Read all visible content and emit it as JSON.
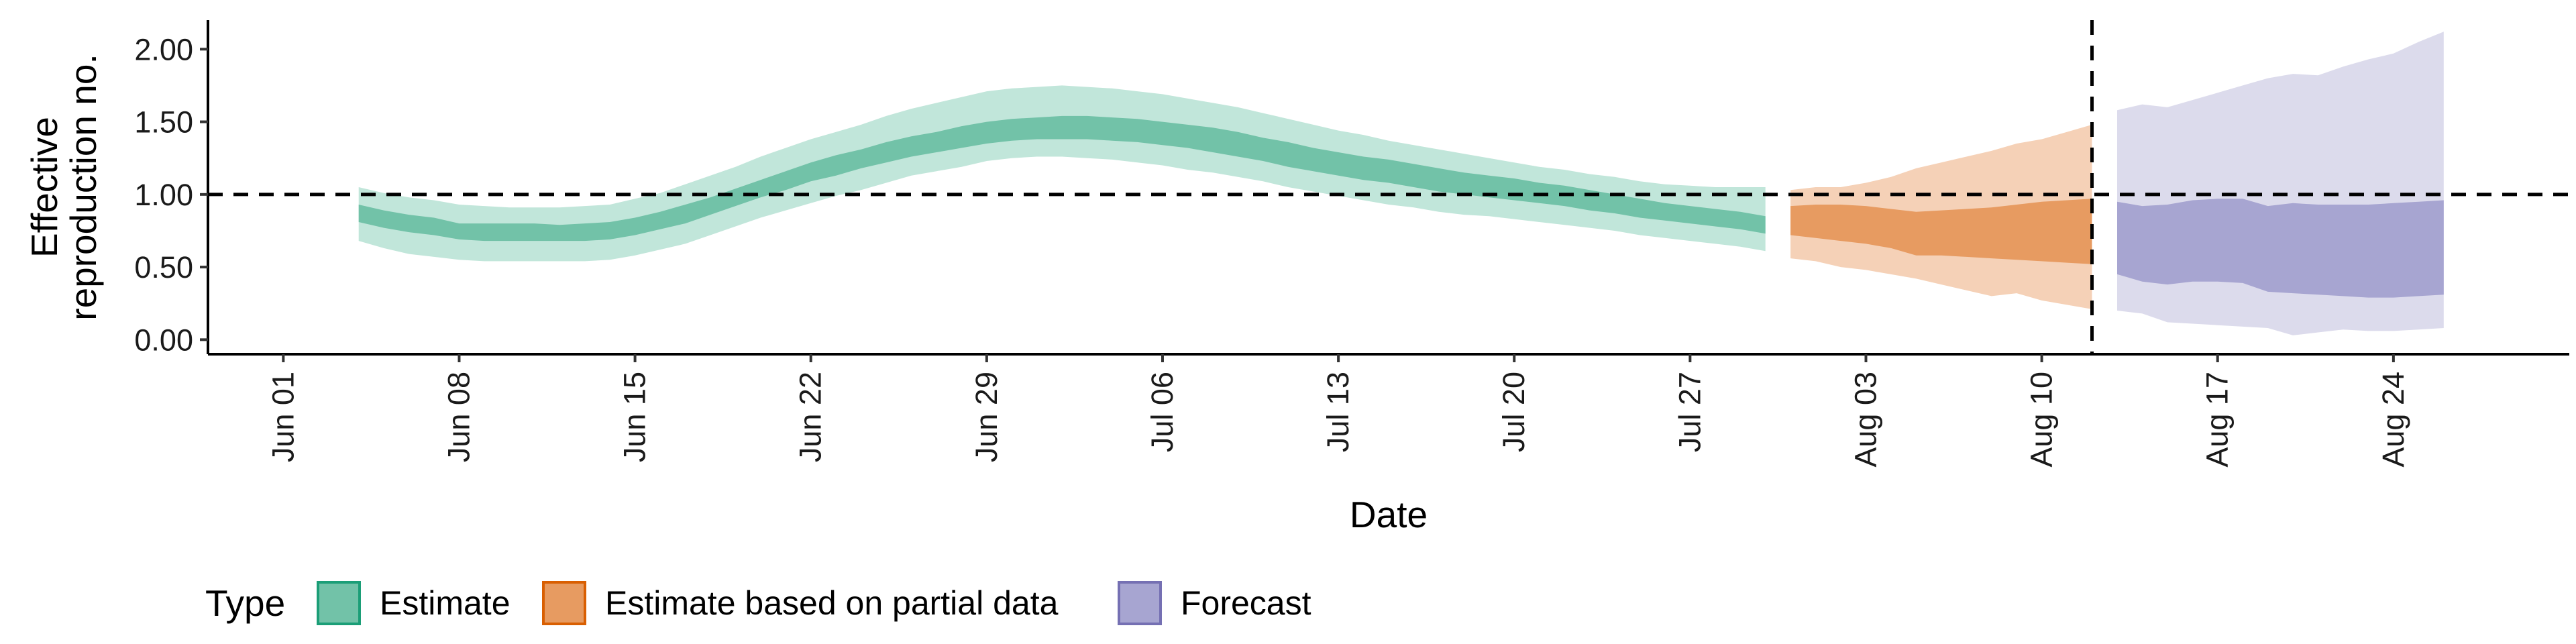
{
  "chart_data": {
    "type": "area",
    "xlabel": "Date",
    "ylabel_lines": [
      "Effective",
      "reproduction no."
    ],
    "xlim": [
      "2020-05-29",
      "2020-08-31"
    ],
    "ylim": [
      -0.1,
      2.2
    ],
    "x_ticks": [
      "2020-06-01",
      "2020-06-08",
      "2020-06-15",
      "2020-06-22",
      "2020-06-29",
      "2020-07-06",
      "2020-07-13",
      "2020-07-20",
      "2020-07-27",
      "2020-08-03",
      "2020-08-10",
      "2020-08-17",
      "2020-08-24"
    ],
    "x_tick_labels": [
      "Jun 01",
      "Jun 08",
      "Jun 15",
      "Jun 22",
      "Jun 29",
      "Jul 06",
      "Jul 13",
      "Jul 20",
      "Jul 27",
      "Aug 03",
      "Aug 10",
      "Aug 17",
      "Aug 24"
    ],
    "y_ticks": [
      0,
      0.5,
      1,
      1.5,
      2
    ],
    "y_tick_labels": [
      "0.00",
      "0.50",
      "1.00",
      "1.50",
      "2.00"
    ],
    "hline": 1.0,
    "vline": "2020-08-12",
    "legend": {
      "position": "bottom-left",
      "title": "Type",
      "entries": [
        "Estimate",
        "Estimate based on partial data",
        "Forecast"
      ]
    },
    "series": [
      {
        "name": "Estimate",
        "fill_light": "#c1e6da",
        "fill_dark": "#72c2a8",
        "stroke": "#1b9e77",
        "x": [
          "2020-06-04",
          "2020-06-05",
          "2020-06-06",
          "2020-06-07",
          "2020-06-08",
          "2020-06-09",
          "2020-06-10",
          "2020-06-11",
          "2020-06-12",
          "2020-06-13",
          "2020-06-14",
          "2020-06-15",
          "2020-06-16",
          "2020-06-17",
          "2020-06-18",
          "2020-06-19",
          "2020-06-20",
          "2020-06-21",
          "2020-06-22",
          "2020-06-23",
          "2020-06-24",
          "2020-06-25",
          "2020-06-26",
          "2020-06-27",
          "2020-06-28",
          "2020-06-29",
          "2020-06-30",
          "2020-07-01",
          "2020-07-02",
          "2020-07-03",
          "2020-07-04",
          "2020-07-05",
          "2020-07-06",
          "2020-07-07",
          "2020-07-08",
          "2020-07-09",
          "2020-07-10",
          "2020-07-11",
          "2020-07-12",
          "2020-07-13",
          "2020-07-14",
          "2020-07-15",
          "2020-07-16",
          "2020-07-17",
          "2020-07-18",
          "2020-07-19",
          "2020-07-20",
          "2020-07-21",
          "2020-07-22",
          "2020-07-23",
          "2020-07-24",
          "2020-07-25",
          "2020-07-26",
          "2020-07-27",
          "2020-07-28",
          "2020-07-29",
          "2020-07-30"
        ],
        "lower90": [
          0.68,
          0.63,
          0.59,
          0.57,
          0.55,
          0.54,
          0.54,
          0.54,
          0.54,
          0.54,
          0.55,
          0.58,
          0.62,
          0.66,
          0.72,
          0.78,
          0.84,
          0.89,
          0.94,
          0.99,
          1.03,
          1.08,
          1.13,
          1.16,
          1.19,
          1.23,
          1.25,
          1.26,
          1.26,
          1.25,
          1.24,
          1.22,
          1.2,
          1.17,
          1.15,
          1.12,
          1.09,
          1.05,
          1.02,
          0.99,
          0.96,
          0.93,
          0.91,
          0.88,
          0.86,
          0.85,
          0.83,
          0.81,
          0.79,
          0.77,
          0.75,
          0.72,
          0.7,
          0.68,
          0.66,
          0.64,
          0.61
        ],
        "lower50": [
          0.81,
          0.77,
          0.74,
          0.72,
          0.69,
          0.68,
          0.68,
          0.68,
          0.68,
          0.68,
          0.69,
          0.72,
          0.76,
          0.8,
          0.86,
          0.92,
          0.98,
          1.03,
          1.09,
          1.13,
          1.18,
          1.22,
          1.26,
          1.29,
          1.32,
          1.35,
          1.37,
          1.38,
          1.38,
          1.38,
          1.37,
          1.36,
          1.34,
          1.32,
          1.29,
          1.26,
          1.23,
          1.19,
          1.16,
          1.13,
          1.1,
          1.08,
          1.05,
          1.02,
          1.0,
          0.98,
          0.96,
          0.94,
          0.92,
          0.89,
          0.87,
          0.84,
          0.82,
          0.8,
          0.78,
          0.76,
          0.73
        ],
        "upper50": [
          0.93,
          0.89,
          0.86,
          0.84,
          0.8,
          0.8,
          0.8,
          0.8,
          0.79,
          0.8,
          0.81,
          0.84,
          0.88,
          0.93,
          0.98,
          1.04,
          1.1,
          1.16,
          1.22,
          1.27,
          1.31,
          1.36,
          1.4,
          1.43,
          1.47,
          1.5,
          1.52,
          1.53,
          1.54,
          1.54,
          1.53,
          1.52,
          1.5,
          1.48,
          1.46,
          1.43,
          1.39,
          1.36,
          1.32,
          1.29,
          1.26,
          1.24,
          1.21,
          1.18,
          1.15,
          1.13,
          1.11,
          1.08,
          1.06,
          1.03,
          1.0,
          0.97,
          0.94,
          0.92,
          0.9,
          0.88,
          0.85
        ],
        "upper90": [
          1.05,
          1.01,
          0.98,
          0.96,
          0.93,
          0.92,
          0.91,
          0.91,
          0.91,
          0.92,
          0.93,
          0.97,
          1.01,
          1.07,
          1.13,
          1.19,
          1.26,
          1.32,
          1.38,
          1.43,
          1.48,
          1.54,
          1.59,
          1.63,
          1.67,
          1.71,
          1.73,
          1.74,
          1.75,
          1.74,
          1.73,
          1.71,
          1.69,
          1.66,
          1.63,
          1.6,
          1.56,
          1.52,
          1.48,
          1.44,
          1.41,
          1.37,
          1.34,
          1.31,
          1.28,
          1.25,
          1.22,
          1.19,
          1.17,
          1.14,
          1.12,
          1.09,
          1.07,
          1.06,
          1.05,
          1.05,
          1.05
        ]
      },
      {
        "name": "Estimate based on partial data",
        "fill_light": "#f5d1b7",
        "fill_dark": "#e79b61",
        "stroke": "#d95f02",
        "x": [
          "2020-07-31",
          "2020-08-01",
          "2020-08-02",
          "2020-08-03",
          "2020-08-04",
          "2020-08-05",
          "2020-08-06",
          "2020-08-07",
          "2020-08-08",
          "2020-08-09",
          "2020-08-10",
          "2020-08-11",
          "2020-08-12"
        ],
        "lower90": [
          0.56,
          0.54,
          0.5,
          0.48,
          0.45,
          0.42,
          0.38,
          0.34,
          0.3,
          0.32,
          0.27,
          0.24,
          0.21
        ],
        "lower50": [
          0.72,
          0.7,
          0.68,
          0.66,
          0.63,
          0.58,
          0.58,
          0.57,
          0.56,
          0.55,
          0.54,
          0.53,
          0.52
        ],
        "upper50": [
          0.92,
          0.93,
          0.93,
          0.92,
          0.9,
          0.88,
          0.89,
          0.9,
          0.91,
          0.93,
          0.95,
          0.96,
          0.97
        ],
        "upper90": [
          1.03,
          1.05,
          1.05,
          1.08,
          1.12,
          1.18,
          1.22,
          1.26,
          1.3,
          1.35,
          1.38,
          1.43,
          1.48
        ]
      },
      {
        "name": "Forecast",
        "fill_light": "#dcdbec",
        "fill_dark": "#a7a5d1",
        "stroke": "#7570b3",
        "x": [
          "2020-08-13",
          "2020-08-14",
          "2020-08-15",
          "2020-08-16",
          "2020-08-17",
          "2020-08-18",
          "2020-08-19",
          "2020-08-20",
          "2020-08-21",
          "2020-08-22",
          "2020-08-23",
          "2020-08-24",
          "2020-08-25",
          "2020-08-26"
        ],
        "lower90": [
          0.2,
          0.18,
          0.12,
          0.11,
          0.1,
          0.09,
          0.08,
          0.03,
          0.05,
          0.07,
          0.06,
          0.06,
          0.07,
          0.08
        ],
        "lower50": [
          0.45,
          0.4,
          0.38,
          0.4,
          0.4,
          0.39,
          0.33,
          0.32,
          0.31,
          0.3,
          0.29,
          0.29,
          0.3,
          0.31
        ],
        "upper50": [
          0.95,
          0.92,
          0.93,
          0.96,
          0.97,
          0.97,
          0.92,
          0.94,
          0.93,
          0.93,
          0.93,
          0.94,
          0.95,
          0.96
        ],
        "upper90": [
          1.58,
          1.62,
          1.6,
          1.65,
          1.7,
          1.75,
          1.8,
          1.83,
          1.82,
          1.88,
          1.93,
          1.97,
          2.05,
          2.12
        ]
      }
    ]
  }
}
